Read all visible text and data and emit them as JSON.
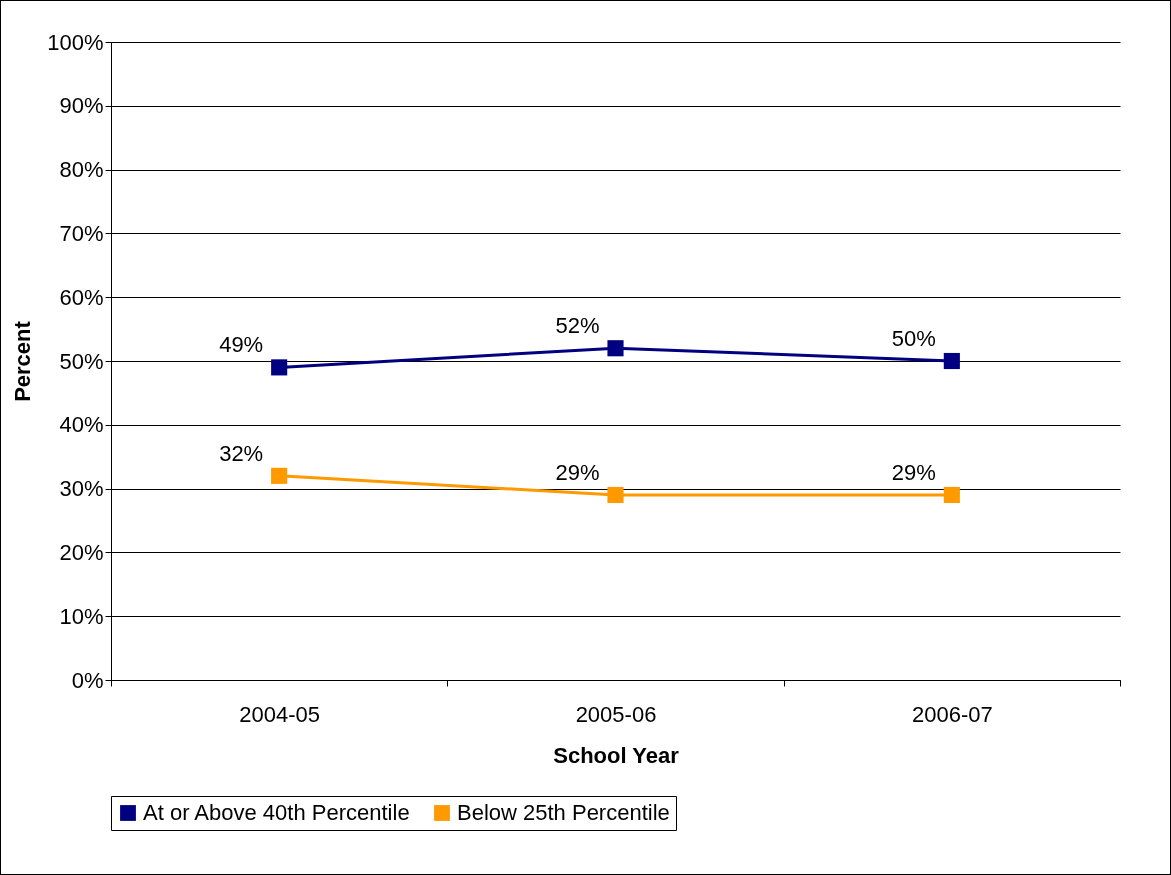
{
  "chart_data": {
    "type": "line",
    "xlabel": "School Year",
    "ylabel": "Percent",
    "categories": [
      "2004-05",
      "2005-06",
      "2006-07"
    ],
    "series": [
      {
        "name": "At or Above 40th Percentile",
        "color": "#000080",
        "values": [
          49,
          52,
          50
        ],
        "value_labels": [
          "49%",
          "52%",
          "50%"
        ]
      },
      {
        "name": "Below 25th Percentile",
        "color": "#ff9900",
        "values": [
          32,
          29,
          29
        ],
        "value_labels": [
          "32%",
          "29%",
          "29%"
        ]
      }
    ],
    "ylim": [
      0,
      100
    ],
    "yticks": [
      {
        "value": 0,
        "label": "0%"
      },
      {
        "value": 10,
        "label": "10%"
      },
      {
        "value": 20,
        "label": "20%"
      },
      {
        "value": 30,
        "label": "30%"
      },
      {
        "value": 40,
        "label": "40%"
      },
      {
        "value": 50,
        "label": "50%"
      },
      {
        "value": 60,
        "label": "60%"
      },
      {
        "value": 70,
        "label": "70%"
      },
      {
        "value": 80,
        "label": "80%"
      },
      {
        "value": 90,
        "label": "90%"
      },
      {
        "value": 100,
        "label": "100%"
      }
    ],
    "grid": "y",
    "legend": "bottom",
    "marker": "square",
    "line_style": "solid"
  }
}
